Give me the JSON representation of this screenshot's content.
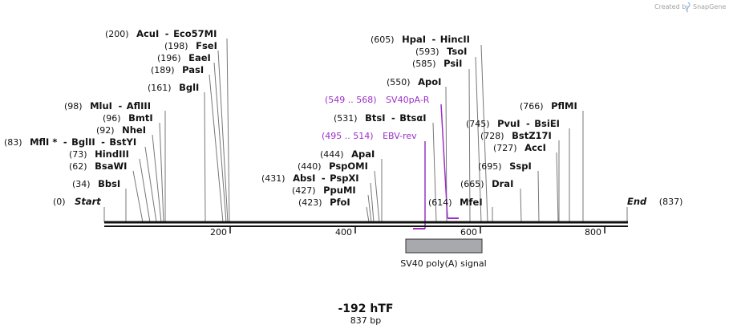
{
  "credit": {
    "text": "Created by",
    "brand": "SnapGene"
  },
  "map": {
    "title": "-192 hTF",
    "length_label": "837 bp",
    "start_label": "Start",
    "start_pos": "(0)",
    "end_label": "End",
    "end_pos": "(837)",
    "ticks": [
      "200",
      "400",
      "600",
      "800"
    ],
    "feature": {
      "name": "SV40 poly(A) signal",
      "color": "#a7a9ac"
    },
    "primers": [
      {
        "pos": "(549 .. 568)",
        "name": "SV40pA-R"
      },
      {
        "pos": "(495 .. 514)",
        "name": "EBV-rev"
      }
    ],
    "sites": [
      {
        "pos": "(200)",
        "name": "AcuI",
        "name2": "Eco57MI"
      },
      {
        "pos": "(198)",
        "name": "FseI"
      },
      {
        "pos": "(196)",
        "name": "EaeI"
      },
      {
        "pos": "(189)",
        "name": "PasI"
      },
      {
        "pos": "(161)",
        "name": "BglI"
      },
      {
        "pos": "(98)",
        "name": "MluI",
        "name2": "AflIII"
      },
      {
        "pos": "(96)",
        "name": "BmtI"
      },
      {
        "pos": "(92)",
        "name": "NheI"
      },
      {
        "pos": "(83)",
        "name": "MflI *",
        "name2": "BglII",
        "name3": "BstYI"
      },
      {
        "pos": "(73)",
        "name": "HindIII"
      },
      {
        "pos": "(62)",
        "name": "BsaWI"
      },
      {
        "pos": "(34)",
        "name": "BbsI"
      },
      {
        "pos": "(605)",
        "name": "HpaI",
        "name2": "HincII"
      },
      {
        "pos": "(593)",
        "name": "TsoI"
      },
      {
        "pos": "(585)",
        "name": "PsiI"
      },
      {
        "pos": "(550)",
        "name": "ApoI"
      },
      {
        "pos": "(531)",
        "name": "BtsI",
        "name2": "BtsαI"
      },
      {
        "pos": "(444)",
        "name": "ApaI"
      },
      {
        "pos": "(440)",
        "name": "PspOMI"
      },
      {
        "pos": "(431)",
        "name": "AbsI",
        "name2": "PspXI"
      },
      {
        "pos": "(427)",
        "name": "PpuMI"
      },
      {
        "pos": "(423)",
        "name": "PfoI"
      },
      {
        "pos": "(614)",
        "name": "MfeI"
      },
      {
        "pos": "(665)",
        "name": "DraI"
      },
      {
        "pos": "(695)",
        "name": "SspI"
      },
      {
        "pos": "(727)",
        "name": "AccI"
      },
      {
        "pos": "(728)",
        "name": "BstZ17I"
      },
      {
        "pos": "(745)",
        "name": "PvuI",
        "name2": "BsiEI"
      },
      {
        "pos": "(766)",
        "name": "PflMI"
      }
    ]
  }
}
